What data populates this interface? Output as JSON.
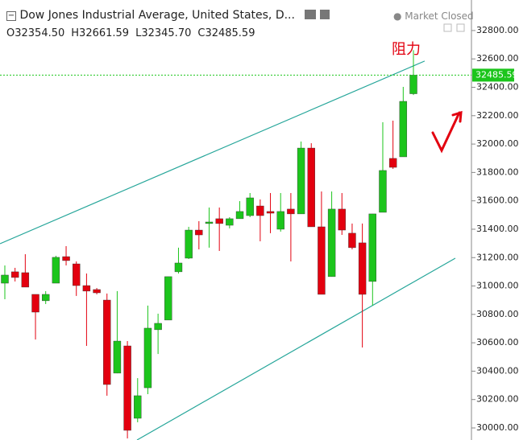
{
  "header": {
    "title": "Dow Jones Industrial Average, United States, D...",
    "status": "Market Closed",
    "ohlc": [
      {
        "key": "O",
        "text": "32354.50"
      },
      {
        "key": "H",
        "text": "32661.59"
      },
      {
        "key": "L",
        "text": "32345.70"
      },
      {
        "key": "C",
        "text": "32485.59"
      }
    ]
  },
  "chart_data": {
    "type": "candlestick",
    "up_color": "#1cc51c",
    "down_color": "#e3000f",
    "open": [
      31020,
      31100,
      31094,
      30941,
      30896,
      31020,
      31207,
      31156,
      31003,
      30975,
      30901,
      30386,
      30578,
      30068,
      30283,
      30692,
      30760,
      31100,
      31196,
      31394,
      31440,
      31474,
      31428,
      31474,
      31496,
      31564,
      31525,
      31400,
      31542,
      31508,
      31972,
      31417,
      31066,
      31542,
      31372,
      31304,
      31032,
      31519,
      31899,
      31910,
      32354.5
    ],
    "close": [
      31077,
      31060,
      30992,
      30816,
      30941,
      31202,
      31179,
      31003,
      30964,
      30952,
      30306,
      30612,
      29983,
      30227,
      30703,
      30737,
      31066,
      31162,
      31394,
      31360,
      31451,
      31440,
      31474,
      31525,
      31621,
      31496,
      31513,
      31525,
      31508,
      31972,
      31417,
      30941,
      31542,
      31394,
      31270,
      30941,
      31508,
      31814,
      31836,
      32301,
      32485.59
    ],
    "high": [
      31145,
      31128,
      31224,
      30941,
      30964,
      31213,
      31281,
      31173,
      31088,
      30986,
      30947,
      30964,
      30612,
      30351,
      30862,
      30805,
      31066,
      31270,
      31417,
      31457,
      31553,
      31553,
      31485,
      31598,
      31655,
      31610,
      31655,
      31655,
      31655,
      32018,
      32006,
      31666,
      31666,
      31655,
      31440,
      31440,
      31508,
      32154,
      32165,
      32403,
      32661.59
    ],
    "low": [
      30907,
      31032,
      30992,
      30623,
      30873,
      31020,
      31145,
      30930,
      30578,
      30941,
      30227,
      30385,
      29926,
      30040,
      30238,
      30521,
      30760,
      31088,
      31190,
      31258,
      31270,
      31247,
      31406,
      31474,
      31485,
      31315,
      31372,
      31383,
      31173,
      31508,
      31417,
      30941,
      31066,
      31360,
      31258,
      30567,
      30862,
      31519,
      31825,
      31910,
      32345.7
    ],
    "ylim": [
      29915,
      33015
    ],
    "yticks": [
      {
        "value": 30000,
        "label": "30000.00"
      },
      {
        "value": 30200,
        "label": "30200.00"
      },
      {
        "value": 30400,
        "label": "30400.00"
      },
      {
        "value": 30600,
        "label": "30600.00"
      },
      {
        "value": 30800,
        "label": "30800.00"
      },
      {
        "value": 31000,
        "label": "31000.00"
      },
      {
        "value": 31200,
        "label": "31200.00"
      },
      {
        "value": 31400,
        "label": "31400.00"
      },
      {
        "value": 31600,
        "label": "31600.00"
      },
      {
        "value": 31800,
        "label": "31800.00"
      },
      {
        "value": 32000,
        "label": "32000.00"
      },
      {
        "value": 32200,
        "label": "32200.00"
      },
      {
        "value": 32400,
        "label": "32400.00"
      },
      {
        "value": 32600,
        "label": "32600.00"
      },
      {
        "value": 32800,
        "label": "32800.00"
      }
    ],
    "last_price": {
      "value": 32485.59,
      "label": "32485.59",
      "color": "#1cc51c"
    },
    "trendlines": [
      {
        "color": "#26a69a",
        "x": [
          -0.47,
          41.1
        ],
        "values": [
          31298,
          32585
        ]
      },
      {
        "color": "#26a69a",
        "x": [
          12.94,
          44.1
        ],
        "values": [
          29915,
          31196
        ]
      }
    ],
    "annotation": {
      "text": "阻力",
      "color": "#e3000f"
    }
  }
}
